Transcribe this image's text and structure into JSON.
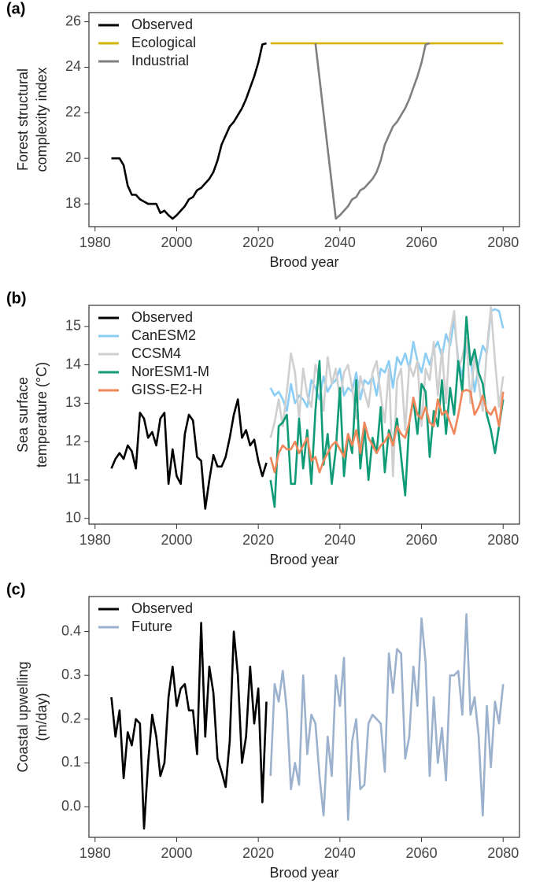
{
  "chart_data": [
    {
      "type": "line",
      "panel_label": "(a)",
      "ylabel": [
        "Forest structural",
        "complexity index"
      ],
      "xlabel": "Brood year",
      "xlim": [
        1978.5,
        2084
      ],
      "xticks": [
        1980,
        2000,
        2020,
        2040,
        2060,
        2080
      ],
      "ylim": [
        17.0,
        26.4
      ],
      "yticks": [
        18,
        20,
        22,
        24,
        26
      ],
      "legend": "top-left",
      "series": [
        {
          "name": "Observed",
          "color": "#000000",
          "x": [
            1984,
            1985,
            1986,
            1987,
            1988,
            1989,
            1990,
            1991,
            1992,
            1993,
            1994,
            1995,
            1996,
            1997,
            1998,
            1999,
            2000,
            2001,
            2002,
            2003,
            2004,
            2005,
            2006,
            2007,
            2008,
            2009,
            2010,
            2011,
            2012,
            2013,
            2014,
            2015,
            2016,
            2017,
            2018,
            2019,
            2020,
            2021,
            2022
          ],
          "values": [
            20,
            20,
            20,
            19.7,
            18.8,
            18.4,
            18.4,
            18.2,
            18.1,
            18.0,
            18.0,
            18.0,
            17.6,
            17.7,
            17.5,
            17.35,
            17.5,
            17.7,
            17.9,
            18.2,
            18.3,
            18.6,
            18.7,
            18.9,
            19.1,
            19.4,
            19.9,
            20.6,
            21.0,
            21.4,
            21.6,
            21.9,
            22.2,
            22.6,
            23.1,
            23.6,
            24.2,
            25.0,
            25.05
          ]
        },
        {
          "name": "Ecological",
          "color": "#d4b400",
          "x": [
            2023,
            2080
          ],
          "values": [
            25.05,
            25.05
          ]
        },
        {
          "name": "Industrial",
          "color": "#7f7f7f",
          "x": [
            2034,
            2039,
            2040,
            2041,
            2042,
            2043,
            2044,
            2045,
            2046,
            2047,
            2048,
            2049,
            2050,
            2051,
            2052,
            2053,
            2054,
            2055,
            2056,
            2057,
            2058,
            2059,
            2060,
            2061,
            2062
          ],
          "values": [
            25.05,
            17.35,
            17.5,
            17.7,
            17.9,
            18.2,
            18.3,
            18.6,
            18.7,
            18.9,
            19.1,
            19.4,
            19.9,
            20.6,
            21.0,
            21.4,
            21.6,
            21.9,
            22.2,
            22.6,
            23.1,
            23.6,
            24.2,
            25.0,
            25.05
          ]
        }
      ]
    },
    {
      "type": "line",
      "panel_label": "(b)",
      "ylabel": [
        "Sea surface",
        "temperature (°C)"
      ],
      "xlabel": "Brood year",
      "xlim": [
        1978.5,
        2084
      ],
      "xticks": [
        1980,
        2000,
        2020,
        2040,
        2060,
        2080
      ],
      "ylim": [
        9.85,
        15.55
      ],
      "yticks": [
        10,
        11,
        12,
        13,
        14,
        15
      ],
      "legend": "top-left",
      "series": [
        {
          "name": "Observed",
          "color": "#000000",
          "x": [
            1984,
            1985,
            1986,
            1987,
            1988,
            1989,
            1990,
            1991,
            1992,
            1993,
            1994,
            1995,
            1996,
            1997,
            1998,
            1999,
            2000,
            2001,
            2002,
            2003,
            2004,
            2005,
            2006,
            2007,
            2008,
            2009,
            2010,
            2011,
            2012,
            2013,
            2014,
            2015,
            2016,
            2017,
            2018,
            2019,
            2020,
            2021,
            2022
          ],
          "values": [
            11.3,
            11.55,
            11.7,
            11.55,
            11.9,
            11.75,
            11.3,
            12.75,
            12.6,
            12.1,
            12.25,
            11.9,
            12.6,
            12.75,
            10.9,
            11.8,
            11.1,
            10.9,
            12.2,
            12.7,
            12.55,
            11.6,
            11.5,
            10.25,
            11.0,
            11.65,
            11.35,
            11.35,
            11.6,
            12.1,
            12.7,
            13.1,
            12.1,
            12.3,
            11.9,
            12.05,
            11.5,
            11.1,
            11.45
          ]
        },
        {
          "name": "CanESM2",
          "color": "#8ccdf4",
          "x": [
            2023,
            2024,
            2025,
            2026,
            2027,
            2028,
            2029,
            2030,
            2031,
            2032,
            2033,
            2034,
            2035,
            2036,
            2037,
            2038,
            2039,
            2040,
            2041,
            2042,
            2043,
            2044,
            2045,
            2046,
            2047,
            2048,
            2049,
            2050,
            2051,
            2052,
            2053,
            2054,
            2055,
            2056,
            2057,
            2058,
            2059,
            2060,
            2061,
            2062,
            2063,
            2064,
            2065,
            2066,
            2067,
            2068,
            2069,
            2070,
            2071,
            2072,
            2073,
            2074,
            2075,
            2076,
            2077,
            2078,
            2079,
            2080
          ],
          "values": [
            13.4,
            13.2,
            13.3,
            13.1,
            12.8,
            13.5,
            13.0,
            13.2,
            13.1,
            12.9,
            13.6,
            13.4,
            13.1,
            13.7,
            13.3,
            13.5,
            13.6,
            13.9,
            13.2,
            13.4,
            13.3,
            13.8,
            13.1,
            13.6,
            13.5,
            13.7,
            13.2,
            13.9,
            13.8,
            14.1,
            13.4,
            14.2,
            14.0,
            14.3,
            13.9,
            14.6,
            14.1,
            13.8,
            14.3,
            14.0,
            14.4,
            14.6,
            14.2,
            14.8,
            14.5,
            15.2,
            14.1,
            13.7,
            14.6,
            14.2,
            13.3,
            14.0,
            14.5,
            14.3,
            15.4,
            15.45,
            15.4,
            14.95
          ]
        },
        {
          "name": "CCSM4",
          "color": "#cfcfcf",
          "x": [
            2023,
            2024,
            2025,
            2026,
            2027,
            2028,
            2029,
            2030,
            2031,
            2032,
            2033,
            2034,
            2035,
            2036,
            2037,
            2038,
            2039,
            2040,
            2041,
            2042,
            2043,
            2044,
            2045,
            2046,
            2047,
            2048,
            2049,
            2050,
            2051,
            2052,
            2053,
            2054,
            2055,
            2056,
            2057,
            2058,
            2059,
            2060,
            2061,
            2062,
            2063,
            2064,
            2065,
            2066,
            2067,
            2068,
            2069,
            2070,
            2071,
            2072,
            2073,
            2074,
            2075,
            2076,
            2077,
            2078,
            2079,
            2080
          ],
          "values": [
            12.1,
            12.5,
            13.1,
            12.4,
            13.3,
            14.3,
            13.8,
            12.6,
            13.9,
            13.2,
            12.9,
            14.0,
            13.6,
            12.8,
            14.2,
            13.5,
            13.9,
            13.1,
            13.8,
            14.0,
            13.4,
            12.6,
            13.7,
            13.3,
            12.9,
            13.8,
            14.1,
            13.2,
            12.5,
            13.9,
            11.1,
            13.6,
            13.9,
            12.3,
            14.0,
            13.7,
            14.1,
            12.4,
            13.9,
            13.6,
            14.6,
            13.2,
            14.4,
            13.0,
            14.8,
            15.4,
            13.9,
            14.2,
            14.7,
            13.0,
            14.3,
            13.5,
            12.8,
            14.4,
            15.5,
            14.1,
            12.9,
            13.7
          ]
        },
        {
          "name": "NorESM1-M",
          "color": "#0f9a78",
          "x": [
            2023,
            2024,
            2025,
            2026,
            2027,
            2028,
            2029,
            2030,
            2031,
            2032,
            2033,
            2034,
            2035,
            2036,
            2037,
            2038,
            2039,
            2040,
            2041,
            2042,
            2043,
            2044,
            2045,
            2046,
            2047,
            2048,
            2049,
            2050,
            2051,
            2052,
            2053,
            2054,
            2055,
            2056,
            2057,
            2058,
            2059,
            2060,
            2061,
            2062,
            2063,
            2064,
            2065,
            2066,
            2067,
            2068,
            2069,
            2070,
            2071,
            2072,
            2073,
            2074,
            2075,
            2076,
            2077,
            2078,
            2079,
            2080
          ],
          "values": [
            11.0,
            10.3,
            12.4,
            12.5,
            12.7,
            10.9,
            10.9,
            12.6,
            11.3,
            12.3,
            10.9,
            12.8,
            14.1,
            11.4,
            12.2,
            10.9,
            11.8,
            13.4,
            11.1,
            12.2,
            11.7,
            13.6,
            11.3,
            12.4,
            11.0,
            12.1,
            11.7,
            12.9,
            11.2,
            12.3,
            11.9,
            12.6,
            11.6,
            10.6,
            12.5,
            13.1,
            12.2,
            13.5,
            13.3,
            11.6,
            12.8,
            12.4,
            13.6,
            12.2,
            13.4,
            12.7,
            14.1,
            13.3,
            15.25,
            14.0,
            14.4,
            13.8,
            13.5,
            12.7,
            12.3,
            11.7,
            12.4,
            13.1
          ]
        },
        {
          "name": "GISS-E2-H",
          "color": "#f0875a",
          "x": [
            2023,
            2024,
            2025,
            2026,
            2027,
            2028,
            2029,
            2030,
            2031,
            2032,
            2033,
            2034,
            2035,
            2036,
            2037,
            2038,
            2039,
            2040,
            2041,
            2042,
            2043,
            2044,
            2045,
            2046,
            2047,
            2048,
            2049,
            2050,
            2051,
            2052,
            2053,
            2054,
            2055,
            2056,
            2057,
            2058,
            2059,
            2060,
            2061,
            2062,
            2063,
            2064,
            2065,
            2066,
            2067,
            2068,
            2069,
            2070,
            2071,
            2072,
            2073,
            2074,
            2075,
            2076,
            2077,
            2078,
            2079,
            2080
          ],
          "values": [
            11.6,
            11.2,
            11.7,
            11.9,
            11.8,
            11.8,
            12.0,
            11.7,
            11.9,
            12.1,
            11.5,
            11.6,
            11.2,
            11.5,
            11.7,
            11.9,
            12.0,
            11.8,
            11.6,
            12.2,
            11.9,
            12.3,
            11.7,
            12.5,
            12.1,
            11.9,
            11.7,
            11.9,
            12.0,
            12.2,
            11.9,
            12.4,
            12.2,
            12.1,
            12.5,
            13.15,
            12.7,
            12.6,
            12.9,
            12.5,
            12.4,
            13.1,
            12.7,
            12.8,
            12.5,
            12.2,
            12.7,
            13.3,
            13.35,
            13.3,
            12.7,
            12.9,
            13.2,
            12.8,
            12.7,
            12.9,
            12.4,
            13.3
          ]
        }
      ]
    },
    {
      "type": "line",
      "panel_label": "(c)",
      "ylabel": [
        "Coastal upwelling",
        "(m/day)"
      ],
      "xlabel": "Brood year",
      "xlim": [
        1978.5,
        2084
      ],
      "xticks": [
        1980,
        2000,
        2020,
        2040,
        2060,
        2080
      ],
      "ylim": [
        -0.07,
        0.48
      ],
      "yticks": [
        {
          "value": 0,
          "label": "0.0"
        },
        0.1,
        0.2,
        0.3,
        0.4
      ],
      "legend": "top-left",
      "series": [
        {
          "name": "Observed",
          "color": "#000000",
          "x": [
            1984,
            1985,
            1986,
            1987,
            1988,
            1989,
            1990,
            1991,
            1992,
            1993,
            1994,
            1995,
            1996,
            1997,
            1998,
            1999,
            2000,
            2001,
            2002,
            2003,
            2004,
            2005,
            2006,
            2007,
            2008,
            2009,
            2010,
            2011,
            2012,
            2013,
            2014,
            2015,
            2016,
            2017,
            2018,
            2019,
            2020,
            2021,
            2022
          ],
          "values": [
            0.25,
            0.16,
            0.22,
            0.065,
            0.17,
            0.14,
            0.2,
            0.19,
            -0.05,
            0.1,
            0.21,
            0.16,
            0.07,
            0.1,
            0.25,
            0.32,
            0.23,
            0.27,
            0.28,
            0.22,
            0.22,
            0.12,
            0.42,
            0.16,
            0.32,
            0.26,
            0.11,
            0.08,
            0.045,
            0.15,
            0.4,
            0.3,
            0.1,
            0.16,
            0.32,
            0.19,
            0.27,
            0.01,
            0.24
          ]
        },
        {
          "name": "Future",
          "color": "#9bb1cd",
          "x": [
            2023,
            2024,
            2025,
            2026,
            2027,
            2028,
            2029,
            2030,
            2031,
            2032,
            2033,
            2034,
            2035,
            2036,
            2037,
            2038,
            2039,
            2040,
            2041,
            2042,
            2043,
            2044,
            2045,
            2046,
            2047,
            2048,
            2049,
            2050,
            2051,
            2052,
            2053,
            2054,
            2055,
            2056,
            2057,
            2058,
            2059,
            2060,
            2061,
            2062,
            2063,
            2064,
            2065,
            2066,
            2067,
            2068,
            2069,
            2070,
            2071,
            2072,
            2073,
            2074,
            2075,
            2076,
            2077,
            2078,
            2079,
            2080
          ],
          "values": [
            0.07,
            0.28,
            0.24,
            0.31,
            0.22,
            0.04,
            0.1,
            0.05,
            0.3,
            0.12,
            0.21,
            0.19,
            0.07,
            -0.02,
            0.16,
            0.07,
            0.3,
            0.23,
            0.34,
            -0.03,
            0.15,
            0.2,
            0.04,
            0.05,
            0.19,
            0.21,
            0.2,
            0.19,
            0.08,
            0.35,
            0.26,
            0.36,
            0.35,
            0.11,
            0.16,
            0.32,
            0.23,
            0.43,
            0.33,
            0.07,
            0.25,
            0.1,
            0.18,
            0.06,
            0.3,
            0.3,
            0.31,
            0.21,
            0.44,
            0.21,
            0.25,
            0.16,
            -0.02,
            0.23,
            0.09,
            0.24,
            0.19,
            0.28
          ]
        }
      ]
    }
  ]
}
